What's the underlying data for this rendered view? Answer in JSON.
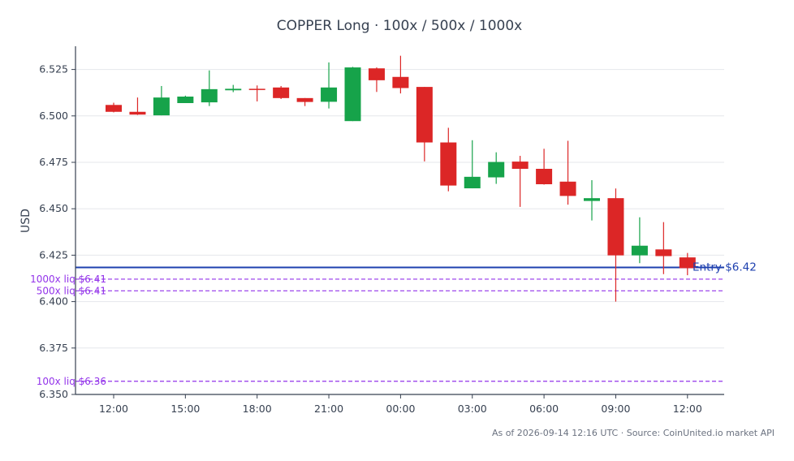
{
  "chart_data": {
    "type": "candlestick",
    "title": "COPPER Long · 100x / 500x / 1000x",
    "ylabel": "USD",
    "xlabel": "",
    "ylim": [
      6.35,
      6.5375
    ],
    "yticks": [
      "6.350",
      "6.375",
      "6.400",
      "6.425",
      "6.450",
      "6.475",
      "6.500",
      "6.525"
    ],
    "xticks": [
      {
        "label": "12:00",
        "index": 0
      },
      {
        "label": "15:00",
        "index": 3
      },
      {
        "label": "18:00",
        "index": 6
      },
      {
        "label": "21:00",
        "index": 9
      },
      {
        "label": "00:00",
        "index": 12
      },
      {
        "label": "03:00",
        "index": 15
      },
      {
        "label": "06:00",
        "index": 18
      },
      {
        "label": "09:00",
        "index": 21
      },
      {
        "label": "12:00",
        "index": 24
      }
    ],
    "grid": true,
    "colors": {
      "up": "#16a34a",
      "down": "#dc2626",
      "entry": "#1e40af",
      "liq": "#9333ea",
      "grid": "#e5e7eb",
      "axis": "#374151",
      "title": "#374151"
    },
    "candles": [
      {
        "time": "12:00",
        "open": 6.5059,
        "high": 6.5071,
        "low": 6.5019,
        "close": 6.5022
      },
      {
        "time": "13:00",
        "open": 6.5022,
        "high": 6.5099,
        "low": 6.5005,
        "close": 6.5007
      },
      {
        "time": "14:00",
        "open": 6.5003,
        "high": 6.5161,
        "low": 6.5003,
        "close": 6.5099
      },
      {
        "time": "15:00",
        "open": 6.5069,
        "high": 6.5109,
        "low": 6.5069,
        "close": 6.5104
      },
      {
        "time": "16:00",
        "open": 6.5073,
        "high": 6.5245,
        "low": 6.5053,
        "close": 6.5144
      },
      {
        "time": "17:00",
        "open": 6.5138,
        "high": 6.5167,
        "low": 6.5128,
        "close": 6.5146
      },
      {
        "time": "18:00",
        "open": 6.5146,
        "high": 6.5164,
        "low": 6.5078,
        "close": 6.5144
      },
      {
        "time": "19:00",
        "open": 6.5153,
        "high": 6.5161,
        "low": 6.5091,
        "close": 6.5096
      },
      {
        "time": "20:00",
        "open": 6.5096,
        "high": 6.5096,
        "low": 6.5053,
        "close": 6.5075
      },
      {
        "time": "21:00",
        "open": 6.5076,
        "high": 6.5288,
        "low": 6.504,
        "close": 6.5153
      },
      {
        "time": "22:00",
        "open": 6.4972,
        "high": 6.5264,
        "low": 6.4972,
        "close": 6.5261
      },
      {
        "time": "23:00",
        "open": 6.5256,
        "high": 6.5261,
        "low": 6.5129,
        "close": 6.5192
      },
      {
        "time": "00:00",
        "open": 6.521,
        "high": 6.5324,
        "low": 6.5121,
        "close": 6.515
      },
      {
        "time": "01:00",
        "open": 6.5156,
        "high": 6.5156,
        "low": 6.4755,
        "close": 6.4857
      },
      {
        "time": "02:00",
        "open": 6.4857,
        "high": 6.4936,
        "low": 6.4594,
        "close": 6.4625
      },
      {
        "time": "03:00",
        "open": 6.461,
        "high": 6.4869,
        "low": 6.461,
        "close": 6.4672
      },
      {
        "time": "04:00",
        "open": 6.4669,
        "high": 6.4804,
        "low": 6.4634,
        "close": 6.4752
      },
      {
        "time": "05:00",
        "open": 6.4754,
        "high": 6.4785,
        "low": 6.451,
        "close": 6.4715
      },
      {
        "time": "06:00",
        "open": 6.4715,
        "high": 6.4823,
        "low": 6.463,
        "close": 6.4632
      },
      {
        "time": "07:00",
        "open": 6.4646,
        "high": 6.4866,
        "low": 6.4522,
        "close": 6.4569
      },
      {
        "time": "08:00",
        "open": 6.4542,
        "high": 6.4654,
        "low": 6.4437,
        "close": 6.4557
      },
      {
        "time": "09:00",
        "open": 6.4557,
        "high": 6.4609,
        "low": 6.4,
        "close": 6.4249
      },
      {
        "time": "10:00",
        "open": 6.4249,
        "high": 6.4454,
        "low": 6.4207,
        "close": 6.4301
      },
      {
        "time": "11:00",
        "open": 6.4281,
        "high": 6.4428,
        "low": 6.4148,
        "close": 6.4245
      },
      {
        "time": "12:00",
        "open": 6.4238,
        "high": 6.4262,
        "low": 6.4142,
        "close": 6.418
      }
    ],
    "lines": [
      {
        "label": "Entry $6.42",
        "value": 6.4184,
        "style": "solid",
        "color": "#1e40af"
      },
      {
        "label": "1000x liq $6.41",
        "value": 6.4121,
        "style": "dashed",
        "color": "#9333ea"
      },
      {
        "label": "500x liq $6.41",
        "value": 6.4058,
        "style": "dashed",
        "color": "#9333ea"
      },
      {
        "label": "100x liq $6.36",
        "value": 6.3571,
        "style": "dashed",
        "color": "#9333ea"
      }
    ]
  },
  "footer": {
    "source": "As of 2026-09-14 12:16 UTC · Source: CoinUnited.io market API"
  }
}
